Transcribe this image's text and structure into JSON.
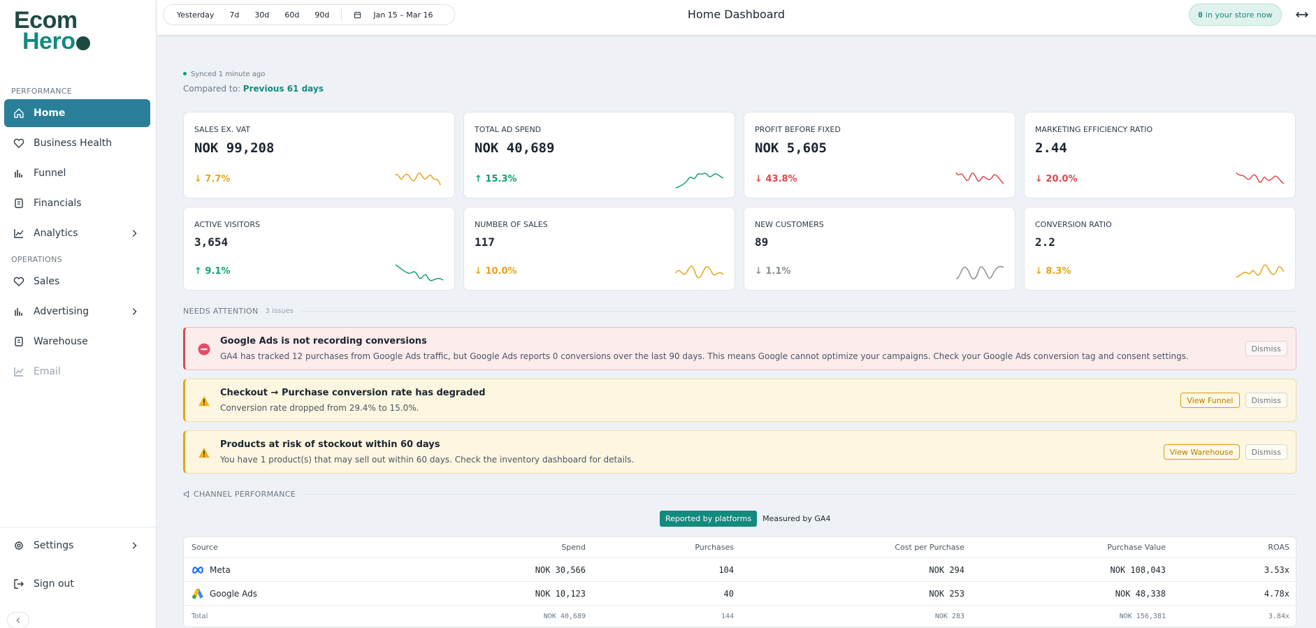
{
  "logo": {
    "line1": "Ecom",
    "line2": "Hero"
  },
  "nav": [
    {
      "section": "PERFORMANCE",
      "items": [
        {
          "label": "Home",
          "active": true
        },
        {
          "label": "Business Health"
        },
        {
          "label": "Funnel"
        },
        {
          "label": "Financials"
        },
        {
          "label": "Analytics",
          "chevron": true
        }
      ]
    },
    {
      "section": "OPERATIONS",
      "items": [
        {
          "label": "Sales"
        },
        {
          "label": "Advertising",
          "chevron": true
        },
        {
          "label": "Warehouse"
        },
        {
          "label": "Email",
          "disabled": true
        }
      ]
    }
  ],
  "bottom_nav": [
    {
      "label": "Settings",
      "chevron": true
    },
    {
      "label": "Sign out"
    }
  ],
  "topbar": {
    "ranges": [
      "Yesterday",
      "7d",
      "30d",
      "60d",
      "90d"
    ],
    "date_range": "Jan 15 – Mar 16",
    "title": "Home Dashboard",
    "live": {
      "count": "0",
      "text": "in your store now"
    }
  },
  "status": {
    "synced": "Synced 1 minute ago",
    "compared_label": "Compared to:",
    "compared_value": "Previous 61 days"
  },
  "kpis": [
    {
      "label": "SALES EX. VAT",
      "value": "NOK 99,208",
      "change": "↓ 7.7%",
      "trend": "warning"
    },
    {
      "label": "TOTAL AD SPEND",
      "value": "NOK 40,689",
      "change": "↑ 15.3%",
      "trend": "good"
    },
    {
      "label": "PROFIT BEFORE FIXED",
      "value": "NOK 5,605",
      "change": "↓ 43.8%",
      "trend": "bad"
    },
    {
      "label": "MARKETING EFFICIENCY RATIO",
      "value": "2.44",
      "change": "↓ 20.0%",
      "trend": "bad"
    },
    {
      "label": "ACTIVE VISITORS",
      "value": "3,654",
      "change": "↑ 9.1%",
      "trend": "good"
    },
    {
      "label": "NUMBER OF SALES",
      "value": "117",
      "change": "↓ 10.0%",
      "trend": "warning"
    },
    {
      "label": "NEW CUSTOMERS",
      "value": "89",
      "change": "↓ 1.1%",
      "trend": "neutral"
    },
    {
      "label": "CONVERSION RATIO",
      "value": "2.2",
      "change": "↓ 8.3%",
      "trend": "warning"
    }
  ],
  "attention": {
    "title": "NEEDS ATTENTION",
    "count": "3 issues",
    "alerts": [
      {
        "severity": "error",
        "title": "Google Ads is not recording conversions",
        "text": "GA4 has tracked 12 purchases from Google Ads traffic, but Google Ads reports 0 conversions over the last 90 days. This means Google cannot optimize your campaigns. Check your Google Ads conversion tag and consent settings.",
        "actions": [
          {
            "label": "Dismiss",
            "style": "plain"
          }
        ]
      },
      {
        "severity": "warning",
        "title": "Checkout → Purchase conversion rate has degraded",
        "text": "Conversion rate dropped from 29.4% to 15.0%.",
        "actions": [
          {
            "label": "View Funnel",
            "style": "primary"
          },
          {
            "label": "Dismiss",
            "style": "plain"
          }
        ]
      },
      {
        "severity": "warning",
        "title": "Products at risk of stockout within 60 days",
        "text": "You have 1 product(s) that may sell out within 60 days. Check the inventory dashboard for details.",
        "actions": [
          {
            "label": "View Warehouse",
            "style": "primary"
          },
          {
            "label": "Dismiss",
            "style": "plain"
          }
        ]
      }
    ]
  },
  "channels": {
    "title": "CHANNEL PERFORMANCE",
    "tabs": [
      {
        "label": "Reported by platforms",
        "active": true
      },
      {
        "label": "Measured by GA4"
      }
    ],
    "columns": [
      "Source",
      "Spend",
      "Purchases",
      "Cost per Purchase",
      "Purchase Value",
      "ROAS"
    ],
    "rows": [
      {
        "logo": "meta",
        "cells": [
          "Meta",
          "NOK 30,566",
          "104",
          "NOK 294",
          "NOK 108,043",
          "3.53x"
        ]
      },
      {
        "logo": "google",
        "cells": [
          "Google Ads",
          "NOK 10,123",
          "40",
          "NOK 253",
          "NOK 48,338",
          "4.78x"
        ]
      }
    ],
    "total": [
      "Total",
      "NOK 40,689",
      "144",
      "NOK 283",
      "NOK 156,381",
      "3.84x"
    ]
  }
}
